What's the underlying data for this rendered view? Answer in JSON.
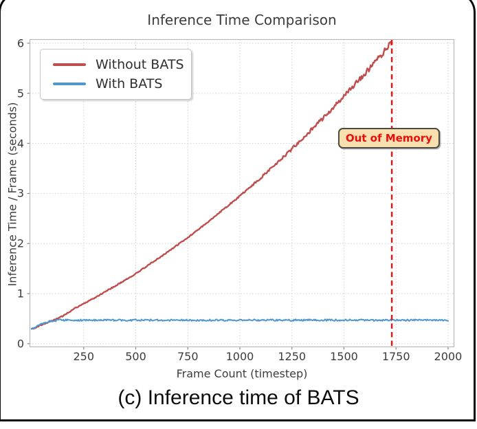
{
  "caption": "(c) Inference time of BATS",
  "chart_data": {
    "type": "line",
    "title": "Inference Time Comparison",
    "xlabel": "Frame Count (timestep)",
    "ylabel": "Inference Time / Frame (seconds)",
    "xlim": [
      -10,
      2030
    ],
    "ylim": [
      -0.07,
      6.08
    ],
    "xticks": [
      250,
      500,
      750,
      1000,
      1250,
      1500,
      1750,
      2000
    ],
    "yticks": [
      0,
      1,
      2,
      3,
      4,
      5,
      6
    ],
    "grid": true,
    "grid_color": "#d0d0d0",
    "spine_color": "#b9b9b9",
    "legend_position": "upper-left",
    "series": [
      {
        "name": "Without BATS",
        "color": "#bf4e4e",
        "x": [
          0,
          50,
          100,
          150,
          200,
          250,
          300,
          350,
          400,
          450,
          500,
          550,
          600,
          650,
          700,
          750,
          800,
          850,
          900,
          950,
          1000,
          1050,
          1100,
          1150,
          1200,
          1250,
          1300,
          1350,
          1400,
          1450,
          1500,
          1550,
          1600,
          1650,
          1700,
          1730
        ],
        "y": [
          0.29,
          0.38,
          0.46,
          0.55,
          0.69,
          0.8,
          0.91,
          1.03,
          1.15,
          1.27,
          1.4,
          1.54,
          1.68,
          1.82,
          1.97,
          2.12,
          2.28,
          2.44,
          2.61,
          2.78,
          2.95,
          3.13,
          3.31,
          3.5,
          3.69,
          3.89,
          4.09,
          4.3,
          4.5,
          4.72,
          4.94,
          5.16,
          5.39,
          5.62,
          5.86,
          6.02
        ],
        "noise": {
          "base": 0.01,
          "grow_from": 900,
          "grow_rate": 6e-05
        },
        "width": 2.4
      },
      {
        "name": "With BATS",
        "color": "#4f97cd",
        "x": [
          0,
          40,
          90,
          130,
          2000
        ],
        "y": [
          0.29,
          0.38,
          0.45,
          0.47,
          0.47
        ],
        "noise": {
          "base": 0.018
        },
        "width": 2.0
      }
    ],
    "annotations": {
      "oom_line": {
        "x": 1730,
        "color": "#ee1111",
        "style": "dashed"
      },
      "oom_label": {
        "text": "Out of Memory",
        "x": 1716,
        "y": 4.1,
        "bg": "#f7dfb0",
        "text_color": "#e8100c"
      }
    }
  }
}
